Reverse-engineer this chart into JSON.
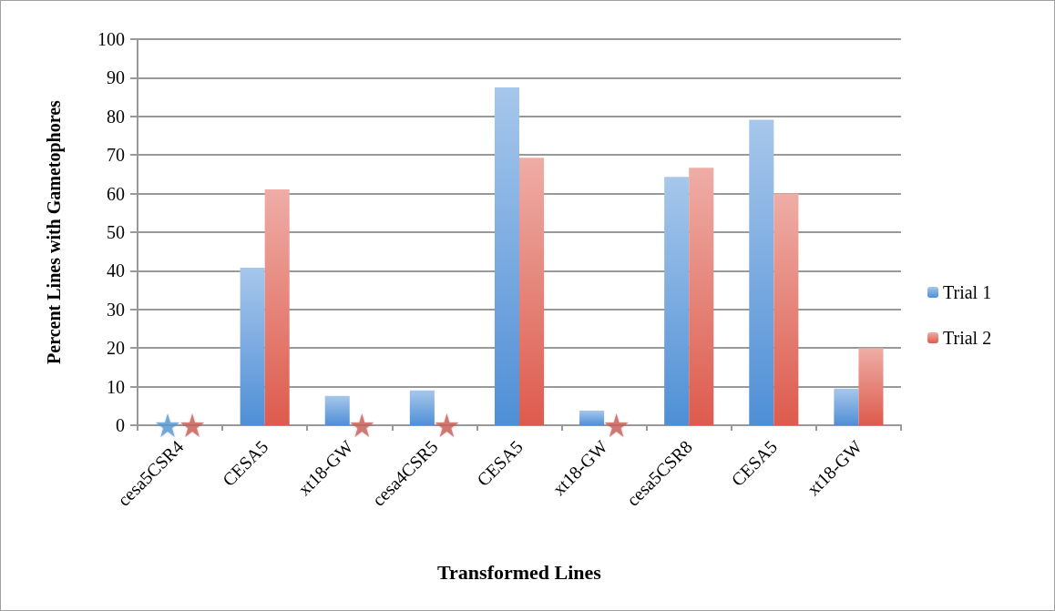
{
  "chart_data": {
    "type": "bar",
    "xlabel": "Transformed Lines",
    "ylabel": "Percent Lines with Gametophores",
    "categories": [
      "cesa5CSR4",
      "CESA5",
      "xt18-GW",
      "cesa4CSR5",
      "CESA5",
      "xt18-GW",
      "cesa5CSR8",
      "CESA5",
      "xt18-GW"
    ],
    "series": [
      {
        "name": "Trial 1",
        "color": "#4f8fd6",
        "values": [
          0,
          40.8,
          7.6,
          9.0,
          87.5,
          3.8,
          64.3,
          79.1,
          9.5
        ]
      },
      {
        "name": "Trial 2",
        "color": "#dd5b4d",
        "values": [
          0,
          61.1,
          0,
          0,
          69.3,
          0,
          66.7,
          60.0,
          20.0
        ]
      },
      {
        "type": "scatter",
        "marker": "star",
        "color": "#5b9bd5",
        "values": [
          0,
          null,
          null,
          null,
          null,
          null,
          null,
          null,
          null
        ]
      },
      {
        "type": "scatter",
        "marker": "star",
        "color": "#cc615b",
        "values": [
          0,
          null,
          0,
          0,
          null,
          0,
          null,
          null,
          null
        ]
      }
    ],
    "ylim": [
      0,
      100
    ],
    "yticks": [
      0,
      10,
      20,
      30,
      40,
      50,
      60,
      70,
      80,
      90,
      100
    ],
    "grid": "y",
    "legend": "right"
  }
}
